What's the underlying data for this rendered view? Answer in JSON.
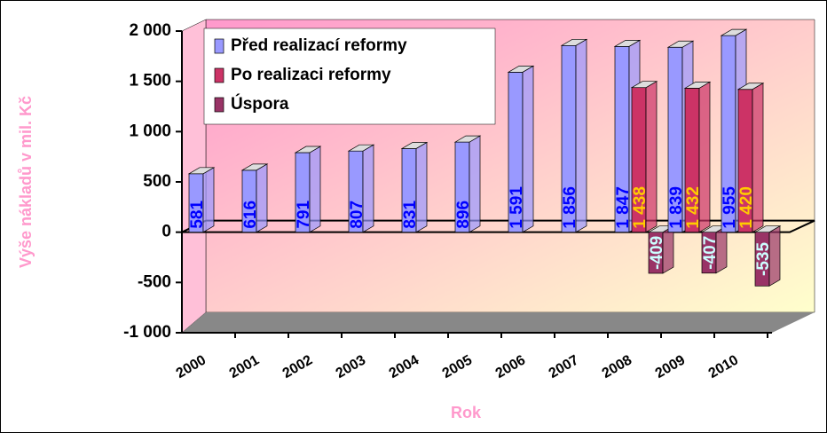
{
  "chart_data": {
    "type": "bar",
    "categories": [
      "2000",
      "2001",
      "2002",
      "2003",
      "2004",
      "2005",
      "2006",
      "2007",
      "2008",
      "2009",
      "2010"
    ],
    "series": [
      {
        "name": "Před realizací reformy",
        "color": "#9999ff",
        "label_color": "#0000ff",
        "values": [
          581,
          616,
          791,
          807,
          831,
          896,
          1591,
          1856,
          1847,
          1839,
          1955
        ],
        "value_labels": [
          "581",
          "616",
          "791",
          "807",
          "831",
          "896",
          "1 591",
          "1 856",
          "1 847",
          "1 839",
          "1 955"
        ]
      },
      {
        "name": "Po realizaci reformy",
        "color": "#cc3366",
        "label_color": "#ffcc00",
        "values": [
          null,
          null,
          null,
          null,
          null,
          null,
          null,
          null,
          1438,
          1432,
          1420
        ],
        "value_labels": [
          null,
          null,
          null,
          null,
          null,
          null,
          null,
          null,
          "1 438",
          "1 432",
          "1 420"
        ]
      },
      {
        "name": "Úspora",
        "color": "#993366",
        "label_color": "#ccffff",
        "values": [
          null,
          null,
          null,
          null,
          null,
          null,
          null,
          null,
          -409,
          -407,
          -535
        ]
      }
    ],
    "ylim": [
      -1000,
      2000
    ],
    "yticks": [
      {
        "value": -1000,
        "label": "-1 000"
      },
      -500,
      0,
      500,
      {
        "value": 1000,
        "label": "1 000"
      },
      {
        "value": 1500,
        "label": "1 500"
      },
      {
        "value": 2000,
        "label": "2 000"
      }
    ],
    "y_label": "Výše nákladů v mil. Kč",
    "x_label": "Rok",
    "legend": "top-left"
  }
}
